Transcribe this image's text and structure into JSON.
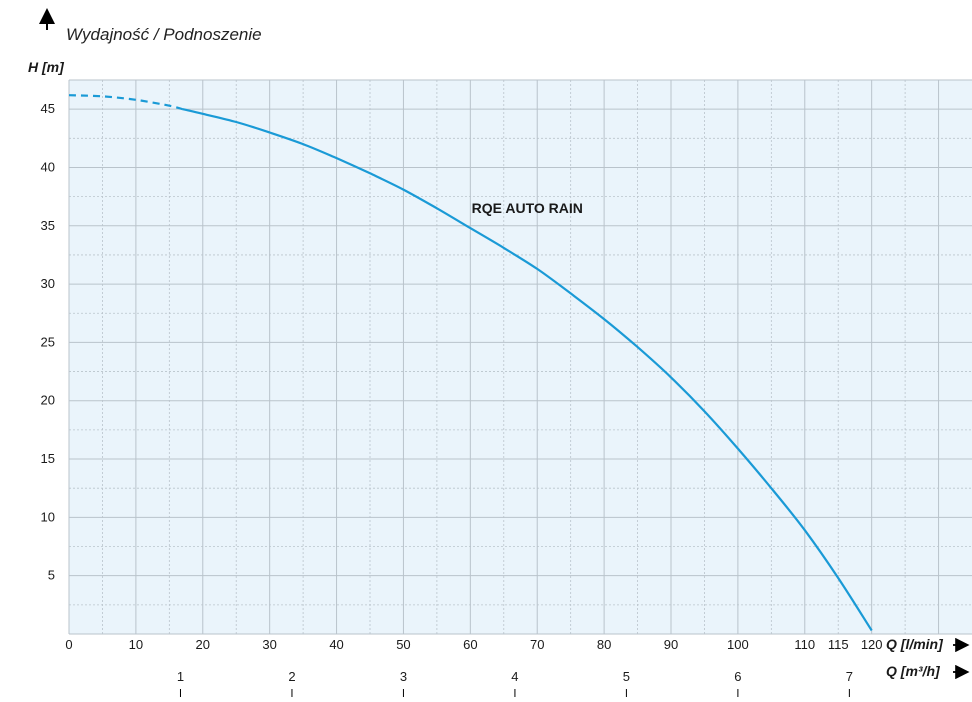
{
  "chart_data": {
    "type": "line",
    "title": "Wydajność / Podnoszenie",
    "ylabel": "H [m]",
    "xlabel": "Q [l/min]",
    "x2label": "Q [m³/h]",
    "xlim": [
      0,
      135
    ],
    "ylim": [
      0,
      47.5
    ],
    "x_ticks": [
      0,
      10,
      20,
      30,
      40,
      50,
      60,
      70,
      80,
      90,
      100,
      110,
      115,
      120
    ],
    "x_tick_labels": [
      "0",
      "10",
      "20",
      "30",
      "40",
      "50",
      "60",
      "70",
      "80",
      "90",
      "100",
      "110",
      "115",
      "120"
    ],
    "y_ticks": [
      5,
      10,
      15,
      20,
      25,
      30,
      35,
      40,
      45
    ],
    "y_tick_labels": [
      "5",
      "10",
      "15",
      "20",
      "25",
      "30",
      "35",
      "40",
      "45"
    ],
    "x2_ticks": [
      1,
      2,
      3,
      4,
      5,
      6,
      7
    ],
    "x2_tick_labels": [
      "1",
      "2",
      "3",
      "4",
      "5",
      "6",
      "7"
    ],
    "grid": true,
    "background_color": "#eaf4fb",
    "grid_color": "#b9c3cb",
    "line_color": "#1a9ad6",
    "series": [
      {
        "name": "RQE AUTO RAIN",
        "dashed_until_x": 17,
        "x": [
          0,
          5,
          10,
          15,
          17,
          20,
          25,
          30,
          35,
          40,
          45,
          50,
          55,
          60,
          65,
          70,
          75,
          80,
          85,
          90,
          95,
          100,
          105,
          110,
          115,
          120
        ],
        "y": [
          46.2,
          46.1,
          45.8,
          45.3,
          45.0,
          44.6,
          43.9,
          43.0,
          42.0,
          40.8,
          39.5,
          38.1,
          36.5,
          34.8,
          33.1,
          31.3,
          29.2,
          27.0,
          24.6,
          22.0,
          19.1,
          15.9,
          12.5,
          8.9,
          4.8,
          0.3
        ]
      }
    ]
  }
}
